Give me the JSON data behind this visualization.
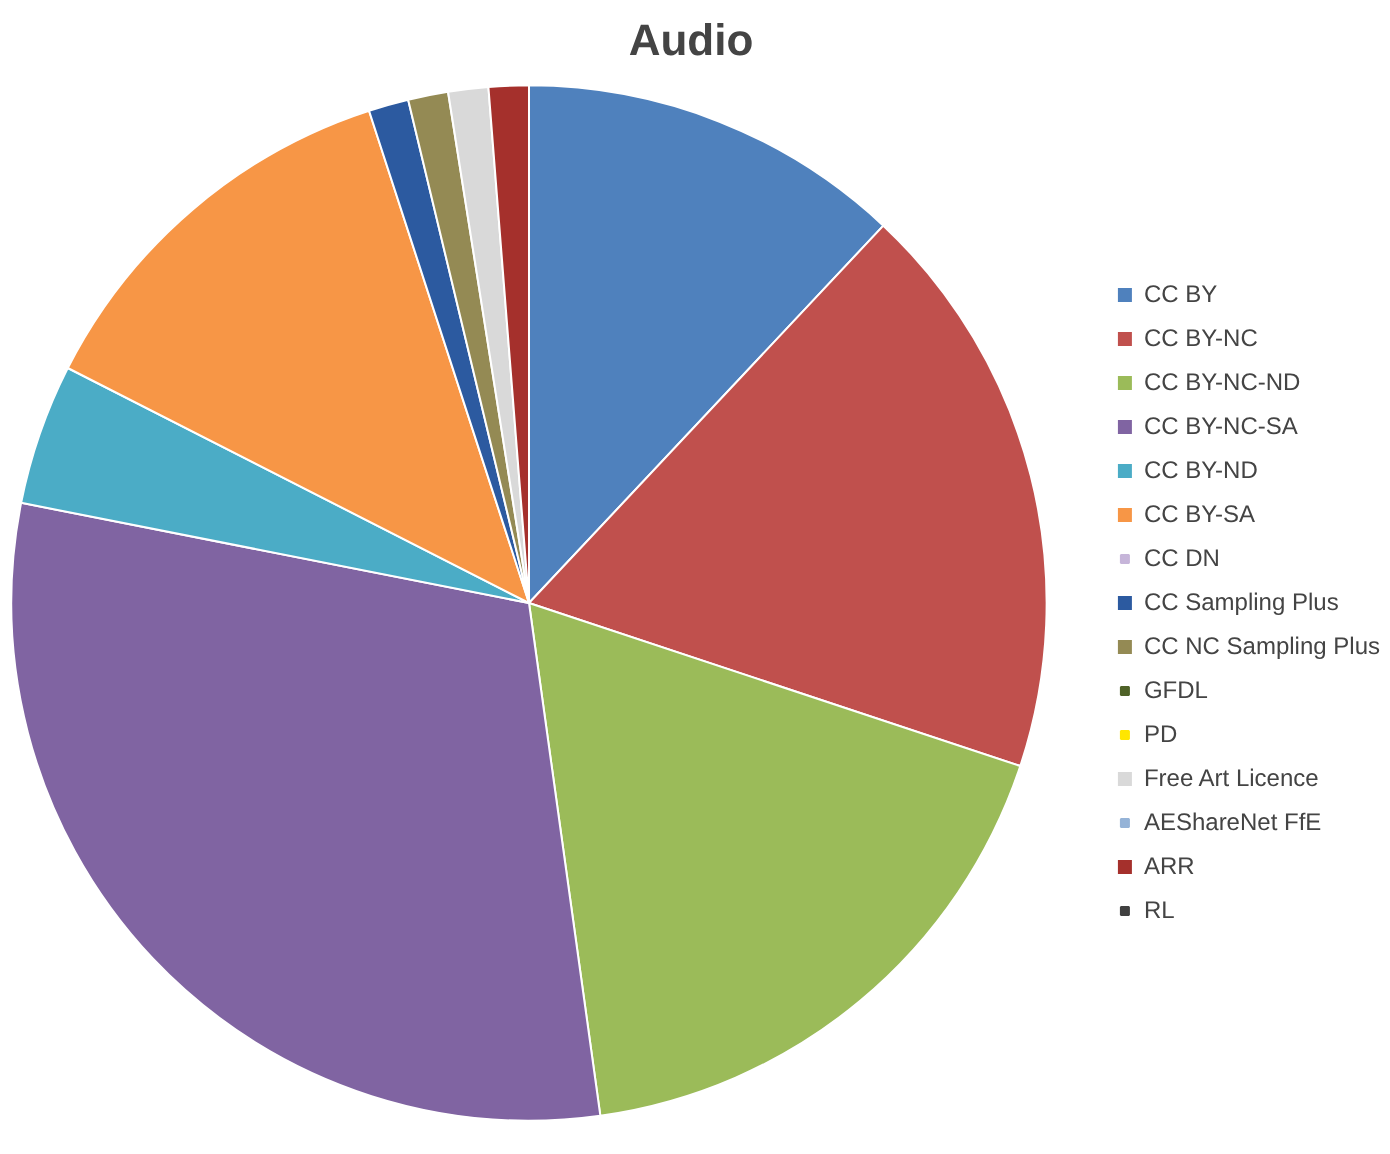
{
  "chart_data": {
    "type": "pie",
    "title": "Audio",
    "categories": [
      "CC BY",
      "CC BY-NC",
      "CC BY-NC-ND",
      "CC BY-NC-SA",
      "CC BY-ND",
      "CC BY-SA",
      "CC DN",
      "CC Sampling Plus",
      "CC NC Sampling Plus",
      "GFDL",
      "PD",
      "Free Art Licence",
      "AEShareNet FfE",
      "ARR",
      "RL"
    ],
    "values": [
      12,
      18.1,
      17.7,
      30.3,
      4.4,
      12.5,
      0,
      1.25,
      1.25,
      0,
      0,
      1.25,
      0,
      1.25,
      0
    ],
    "colors": [
      "#4f81bd",
      "#c0504d",
      "#9bbb59",
      "#8064a2",
      "#4bacc6",
      "#f79646",
      "#c6b5d9",
      "#2c5aa0",
      "#948a54",
      "#4f6228",
      "#ffe600",
      "#d9d9d9",
      "#95b3d7",
      "#a5302c",
      "#404040"
    ],
    "legend": "right"
  }
}
